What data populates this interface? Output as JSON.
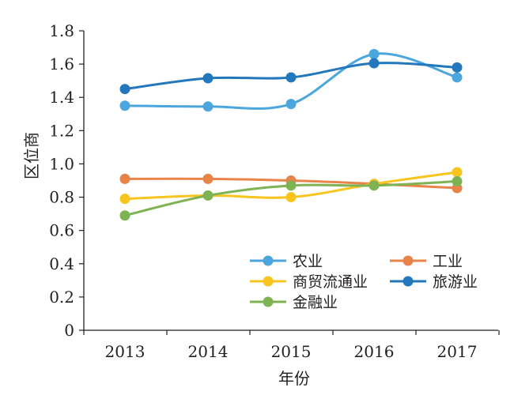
{
  "chart_data": {
    "type": "line",
    "title": "",
    "xlabel": "年份",
    "ylabel": "区位商",
    "categories": [
      "2013",
      "2014",
      "2015",
      "2016",
      "2017"
    ],
    "ylim": [
      0,
      1.8
    ],
    "yticks": [
      "0",
      "0.2",
      "0.4",
      "0.6",
      "0.8",
      "1.0",
      "1.2",
      "1.4",
      "1.6",
      "1.8"
    ],
    "grid": false,
    "legend_position": "bottom-right",
    "series": [
      {
        "name": "农业",
        "color": "#4aa6dd",
        "values": [
          1.35,
          1.345,
          1.36,
          1.66,
          1.52
        ]
      },
      {
        "name": "工业",
        "color": "#e8834a",
        "values": [
          0.91,
          0.91,
          0.9,
          0.88,
          0.855
        ]
      },
      {
        "name": "商贸流通业",
        "color": "#f7c51e",
        "values": [
          0.79,
          0.81,
          0.8,
          0.88,
          0.95
        ]
      },
      {
        "name": "旅游业",
        "color": "#2377bd",
        "values": [
          1.45,
          1.515,
          1.52,
          1.605,
          1.58
        ]
      },
      {
        "name": "金融业",
        "color": "#7db352",
        "values": [
          0.69,
          0.81,
          0.87,
          0.87,
          0.895
        ]
      }
    ]
  }
}
